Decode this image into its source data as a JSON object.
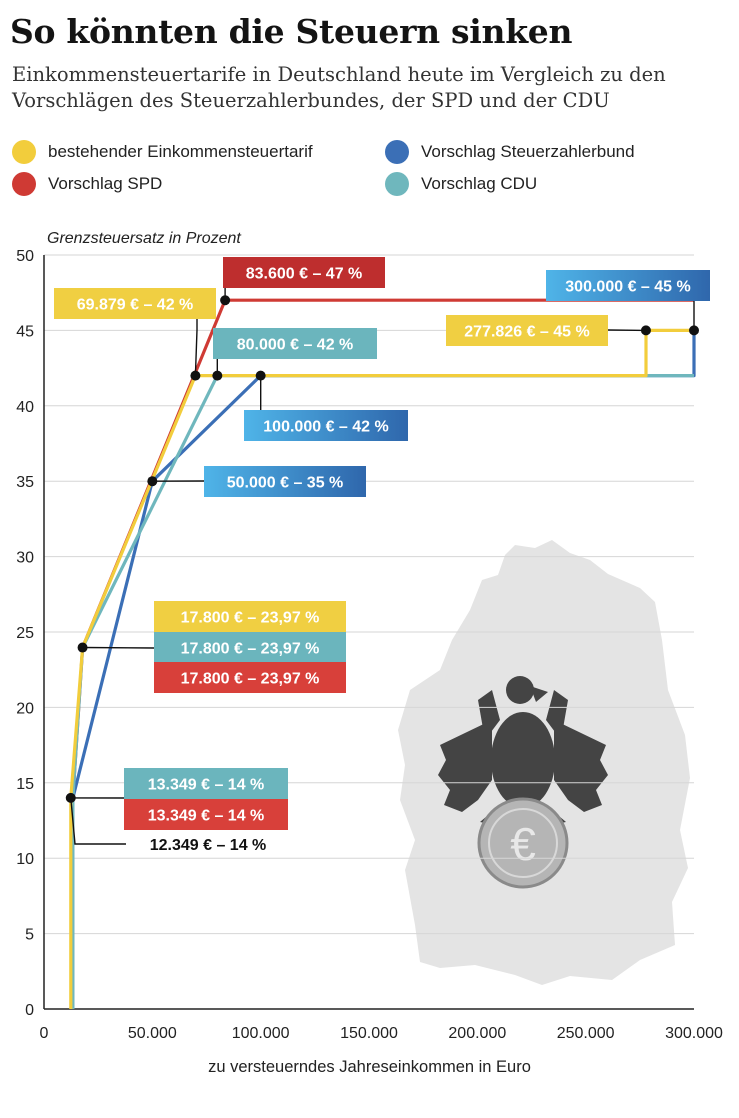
{
  "title": "So könnten die Steuern sinken",
  "subtitle": "Einkommensteuertarife in Deutschland heute im Vergleich zu den Vorschlägen des Steuerzahlerbundes, der SPD und der CDU",
  "legend": [
    {
      "label": "bestehender Einkommensteuertarif",
      "color": "#f2cd3c"
    },
    {
      "label": "Vorschlag SPD",
      "color": "#cf3a34"
    },
    {
      "label": "Vorschlag Steuerzahlerbund",
      "color": "#3b6fb6"
    },
    {
      "label": "Vorschlag CDU",
      "color": "#6fb7bd"
    }
  ],
  "colors": {
    "bestehend": "#f2cd3c",
    "spd": "#cf3a34",
    "steuerzahlerbund": "#3b6fb6",
    "cdu": "#6fb7bd",
    "label_yellow": "#f0cf42",
    "label_red_dark": "#be2e2e",
    "label_red": "#d8403a",
    "label_teal": "#6bb5bd",
    "label_blue_grad_start": "#4fb4e8",
    "label_blue_grad_end": "#2f67ac",
    "map": "#e4e4e4",
    "eagle": "#444444"
  },
  "chart_data": {
    "type": "line",
    "ylabel": "Grenzsteuersatz in Prozent",
    "xlabel": "zu versteuerndes Jahreseinkommen in Euro",
    "xlim": [
      0,
      300000
    ],
    "ylim": [
      0,
      50
    ],
    "x_ticks": [
      0,
      50000,
      100000,
      150000,
      200000,
      250000,
      300000
    ],
    "x_tick_labels": [
      "0",
      "50.000",
      "100.000",
      "150.000",
      "200.000",
      "250.000",
      "300.000"
    ],
    "y_ticks": [
      0,
      5,
      10,
      15,
      20,
      25,
      30,
      35,
      40,
      45,
      50
    ],
    "y_tick_labels": [
      "0",
      "5",
      "10",
      "15",
      "20",
      "25",
      "30",
      "35",
      "40",
      "45",
      "50"
    ],
    "grid": true,
    "series": [
      {
        "name": "Vorschlag SPD",
        "color": "#cf3a34",
        "points": [
          [
            13349,
            0
          ],
          [
            13349,
            14
          ],
          [
            17800,
            23.97
          ],
          [
            83600,
            47
          ],
          [
            300000,
            47
          ]
        ]
      },
      {
        "name": "Vorschlag Steuerzahlerbund",
        "color": "#3b6fb6",
        "points": [
          [
            13349,
            0
          ],
          [
            13349,
            14
          ],
          [
            50000,
            35
          ],
          [
            100000,
            42
          ],
          [
            300000,
            42
          ],
          [
            300000,
            45
          ]
        ]
      },
      {
        "name": "Vorschlag CDU",
        "color": "#6fb7bd",
        "points": [
          [
            13349,
            0
          ],
          [
            13349,
            14
          ],
          [
            17800,
            23.97
          ],
          [
            80000,
            42
          ],
          [
            300000,
            42
          ]
        ]
      },
      {
        "name": "bestehender Einkommensteuertarif",
        "color": "#f2cd3c",
        "points": [
          [
            12349,
            0
          ],
          [
            12349,
            14
          ],
          [
            17800,
            23.97
          ],
          [
            69879,
            42
          ],
          [
            277826,
            42
          ],
          [
            277826,
            45
          ],
          [
            300000,
            45
          ]
        ]
      }
    ],
    "markers": [
      {
        "x": 12349,
        "y": 14
      },
      {
        "x": 17800,
        "y": 23.97
      },
      {
        "x": 50000,
        "y": 35
      },
      {
        "x": 69879,
        "y": 42
      },
      {
        "x": 80000,
        "y": 42
      },
      {
        "x": 83600,
        "y": 47
      },
      {
        "x": 100000,
        "y": 42
      },
      {
        "x": 277826,
        "y": 45
      },
      {
        "x": 300000,
        "y": 45
      }
    ],
    "annotations": [
      {
        "text": "83.600 € – 47 %",
        "style": "red_dark"
      },
      {
        "text": "300.000 € – 45 %",
        "style": "blue"
      },
      {
        "text": "69.879 € – 42 %",
        "style": "yellow"
      },
      {
        "text": "277.826 € – 45 %",
        "style": "yellow"
      },
      {
        "text": "80.000 € – 42 %",
        "style": "teal"
      },
      {
        "text": "100.000 € – 42 %",
        "style": "blue"
      },
      {
        "text": "50.000 € – 35 %",
        "style": "blue"
      },
      {
        "text": "17.800 € – 23,97 %",
        "style": "yellow"
      },
      {
        "text": "17.800 € – 23,97 %",
        "style": "teal"
      },
      {
        "text": "17.800 € – 23,97 %",
        "style": "red"
      },
      {
        "text": "13.349 € – 14 %",
        "style": "teal"
      },
      {
        "text": "13.349 € – 14 %",
        "style": "red"
      },
      {
        "text": "12.349 € – 14 %",
        "style": "plain"
      }
    ]
  }
}
